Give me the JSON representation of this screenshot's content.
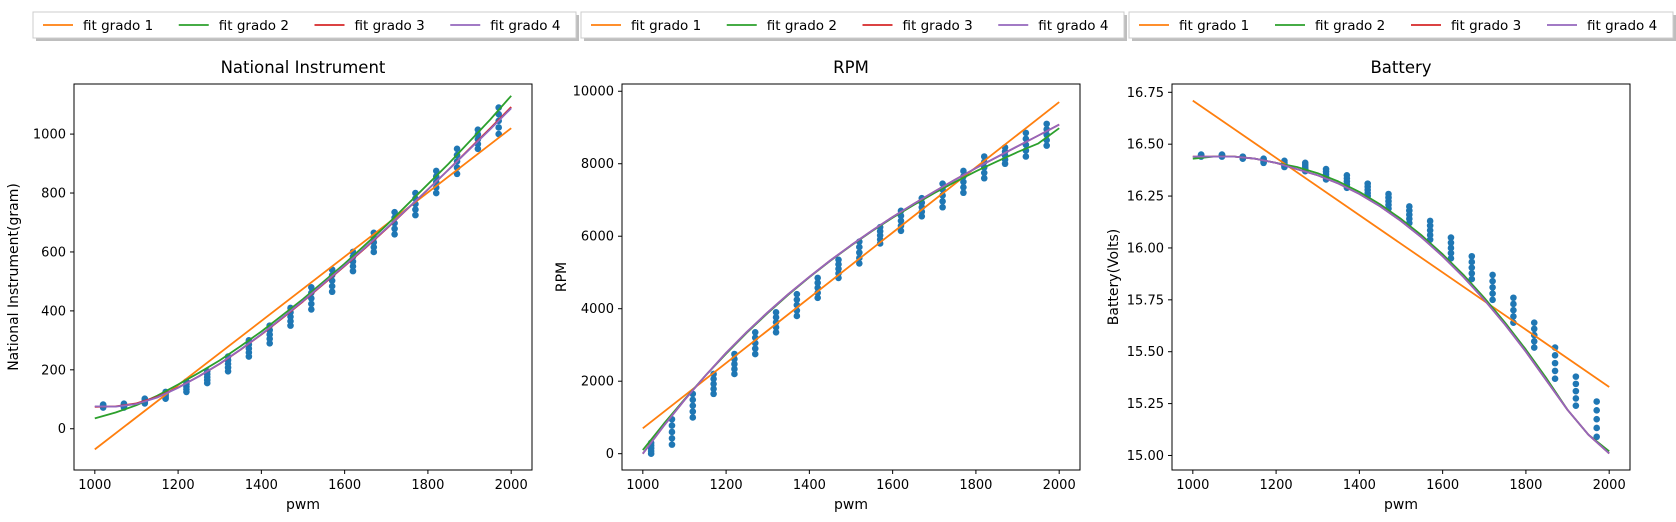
{
  "chart_data": [
    {
      "type": "scatter",
      "title": "National Instrument",
      "xlabel": "pwm",
      "ylabel": "National Instrument(gram)",
      "xlim": [
        950,
        2050
      ],
      "ylim": [
        -140,
        1170
      ],
      "xticks": [
        1000,
        1200,
        1400,
        1600,
        1800,
        2000
      ],
      "yticks": [
        0,
        200,
        400,
        600,
        800,
        1000
      ],
      "grid": false,
      "legend": {
        "placement": "top-center, outside axes, shadowed frame",
        "entries": [
          "fit grado 1",
          "fit grado 2",
          "fit grado 3",
          "fit grado 4"
        ]
      },
      "scatter": [
        {
          "x": 1020,
          "y": [
            72,
            82
          ]
        },
        {
          "x": 1070,
          "y": [
            72,
            85
          ]
        },
        {
          "x": 1120,
          "y": [
            86,
            102
          ]
        },
        {
          "x": 1170,
          "y": [
            102,
            125
          ]
        },
        {
          "x": 1220,
          "y": [
            125,
            160
          ]
        },
        {
          "x": 1270,
          "y": [
            155,
            195
          ]
        },
        {
          "x": 1320,
          "y": [
            195,
            245
          ]
        },
        {
          "x": 1370,
          "y": [
            245,
            300
          ]
        },
        {
          "x": 1420,
          "y": [
            290,
            350
          ]
        },
        {
          "x": 1470,
          "y": [
            350,
            410
          ]
        },
        {
          "x": 1520,
          "y": [
            405,
            480
          ]
        },
        {
          "x": 1570,
          "y": [
            465,
            540
          ]
        },
        {
          "x": 1620,
          "y": [
            535,
            600
          ]
        },
        {
          "x": 1670,
          "y": [
            600,
            665
          ]
        },
        {
          "x": 1720,
          "y": [
            660,
            735
          ]
        },
        {
          "x": 1770,
          "y": [
            725,
            800
          ]
        },
        {
          "x": 1820,
          "y": [
            800,
            875
          ]
        },
        {
          "x": 1870,
          "y": [
            865,
            950
          ]
        },
        {
          "x": 1920,
          "y": [
            950,
            1015
          ]
        },
        {
          "x": 1970,
          "y": [
            1000,
            1090
          ]
        }
      ],
      "series": [
        {
          "name": "fit grado 1",
          "x": [
            1000,
            2000
          ],
          "y": [
            -70,
            1020
          ]
        },
        {
          "name": "fit grado 2",
          "x": [
            1000,
            1050,
            1100,
            1150,
            1200,
            1250,
            1300,
            1350,
            1400,
            1450,
            1500,
            1550,
            1600,
            1650,
            1700,
            1750,
            1800,
            1850,
            1900,
            1950,
            2000
          ],
          "y": [
            35,
            55,
            80,
            112,
            150,
            190,
            232,
            280,
            330,
            385,
            440,
            500,
            560,
            625,
            690,
            760,
            830,
            900,
            975,
            1050,
            1130
          ]
        },
        {
          "name": "fit grado 3",
          "x": [
            1000,
            1050,
            1100,
            1150,
            1200,
            1250,
            1300,
            1350,
            1400,
            1450,
            1500,
            1550,
            1600,
            1650,
            1700,
            1750,
            1800,
            1850,
            1900,
            1950,
            2000
          ],
          "y": [
            74,
            76,
            86,
            108,
            140,
            178,
            220,
            268,
            320,
            375,
            432,
            492,
            552,
            614,
            678,
            745,
            812,
            880,
            950,
            1020,
            1092
          ]
        },
        {
          "name": "fit grado 4",
          "x": [
            1000,
            1050,
            1100,
            1150,
            1200,
            1250,
            1300,
            1350,
            1400,
            1450,
            1500,
            1550,
            1600,
            1650,
            1700,
            1750,
            1800,
            1850,
            1900,
            1950,
            2000
          ],
          "y": [
            76,
            75,
            84,
            106,
            139,
            178,
            221,
            269,
            321,
            377,
            434,
            494,
            554,
            616,
            680,
            746,
            812,
            880,
            948,
            1017,
            1088
          ]
        }
      ]
    },
    {
      "type": "scatter",
      "title": "RPM",
      "xlabel": "pwm",
      "ylabel": "RPM",
      "xlim": [
        950,
        2050
      ],
      "ylim": [
        -450,
        10200
      ],
      "xticks": [
        1000,
        1200,
        1400,
        1600,
        1800,
        2000
      ],
      "yticks": [
        0,
        2000,
        4000,
        6000,
        8000,
        10000
      ],
      "grid": false,
      "legend": {
        "placement": "top-center, outside axes, shadowed frame",
        "entries": [
          "fit grado 1",
          "fit grado 2",
          "fit grado 3",
          "fit grado 4"
        ]
      },
      "scatter": [
        {
          "x": 1020,
          "y": [
            0,
            300
          ]
        },
        {
          "x": 1070,
          "y": [
            250,
            950
          ]
        },
        {
          "x": 1120,
          "y": [
            1000,
            1650
          ]
        },
        {
          "x": 1170,
          "y": [
            1650,
            2200
          ]
        },
        {
          "x": 1220,
          "y": [
            2200,
            2750
          ]
        },
        {
          "x": 1270,
          "y": [
            2750,
            3350
          ]
        },
        {
          "x": 1320,
          "y": [
            3350,
            3900
          ]
        },
        {
          "x": 1370,
          "y": [
            3800,
            4400
          ]
        },
        {
          "x": 1420,
          "y": [
            4300,
            4850
          ]
        },
        {
          "x": 1470,
          "y": [
            4850,
            5350
          ]
        },
        {
          "x": 1520,
          "y": [
            5250,
            5850
          ]
        },
        {
          "x": 1570,
          "y": [
            5800,
            6250
          ]
        },
        {
          "x": 1620,
          "y": [
            6150,
            6700
          ]
        },
        {
          "x": 1670,
          "y": [
            6550,
            7050
          ]
        },
        {
          "x": 1720,
          "y": [
            6800,
            7450
          ]
        },
        {
          "x": 1770,
          "y": [
            7200,
            7800
          ]
        },
        {
          "x": 1820,
          "y": [
            7600,
            8200
          ]
        },
        {
          "x": 1870,
          "y": [
            8000,
            8450
          ]
        },
        {
          "x": 1920,
          "y": [
            8200,
            8850
          ]
        },
        {
          "x": 1970,
          "y": [
            8500,
            9100
          ]
        }
      ],
      "series": [
        {
          "name": "fit grado 1",
          "x": [
            1000,
            2000
          ],
          "y": [
            700,
            9700
          ]
        },
        {
          "name": "fit grado 2",
          "x": [
            1000,
            1050,
            1100,
            1150,
            1200,
            1250,
            1300,
            1350,
            1400,
            1450,
            1500,
            1550,
            1600,
            1650,
            1700,
            1750,
            1800,
            1850,
            1900,
            1950,
            2000
          ],
          "y": [
            100,
            820,
            1500,
            2150,
            2760,
            3340,
            3880,
            4390,
            4870,
            5320,
            5740,
            6140,
            6510,
            6860,
            7190,
            7500,
            7790,
            8060,
            8320,
            8560,
            8980
          ]
        },
        {
          "name": "fit grado 3",
          "x": [
            1000,
            1050,
            1100,
            1150,
            1200,
            1250,
            1300,
            1350,
            1400,
            1450,
            1500,
            1550,
            1600,
            1650,
            1700,
            1750,
            1800,
            1850,
            1900,
            1950,
            2000
          ],
          "y": [
            0,
            760,
            1480,
            2150,
            2780,
            3360,
            3900,
            4410,
            4880,
            5330,
            5750,
            6150,
            6530,
            6890,
            7230,
            7560,
            7880,
            8180,
            8480,
            8780,
            9080
          ]
        },
        {
          "name": "fit grado 4",
          "x": [
            1000,
            1050,
            1100,
            1150,
            1200,
            1250,
            1300,
            1350,
            1400,
            1450,
            1500,
            1550,
            1600,
            1650,
            1700,
            1750,
            1800,
            1850,
            1900,
            1950,
            2000
          ],
          "y": [
            0,
            760,
            1480,
            2150,
            2780,
            3360,
            3900,
            4410,
            4880,
            5330,
            5750,
            6150,
            6530,
            6890,
            7230,
            7560,
            7880,
            8180,
            8480,
            8780,
            9080
          ]
        }
      ]
    },
    {
      "type": "scatter",
      "title": "Battery",
      "xlabel": "pwm",
      "ylabel": "Battery(Volts)",
      "xlim": [
        950,
        2050
      ],
      "ylim": [
        14.93,
        16.79
      ],
      "xticks": [
        1000,
        1200,
        1400,
        1600,
        1800,
        2000
      ],
      "yticks": [
        15.0,
        15.25,
        15.5,
        15.75,
        16.0,
        16.25,
        16.5,
        16.75
      ],
      "grid": false,
      "legend": {
        "placement": "top-center, outside axes, shadowed frame",
        "entries": [
          "fit grado 1",
          "fit grado 2",
          "fit grado 3",
          "fit grado 4"
        ]
      },
      "scatter": [
        {
          "x": 1020,
          "y": [
            16.44,
            16.45
          ]
        },
        {
          "x": 1070,
          "y": [
            16.44,
            16.45
          ]
        },
        {
          "x": 1120,
          "y": [
            16.43,
            16.44
          ]
        },
        {
          "x": 1170,
          "y": [
            16.41,
            16.43
          ]
        },
        {
          "x": 1220,
          "y": [
            16.39,
            16.42
          ]
        },
        {
          "x": 1270,
          "y": [
            16.37,
            16.41
          ]
        },
        {
          "x": 1320,
          "y": [
            16.33,
            16.38
          ]
        },
        {
          "x": 1370,
          "y": [
            16.29,
            16.35
          ]
        },
        {
          "x": 1420,
          "y": [
            16.25,
            16.31
          ]
        },
        {
          "x": 1470,
          "y": [
            16.19,
            16.26
          ]
        },
        {
          "x": 1520,
          "y": [
            16.12,
            16.2
          ]
        },
        {
          "x": 1570,
          "y": [
            16.04,
            16.13
          ]
        },
        {
          "x": 1620,
          "y": [
            15.95,
            16.05
          ]
        },
        {
          "x": 1670,
          "y": [
            15.85,
            15.96
          ]
        },
        {
          "x": 1720,
          "y": [
            15.75,
            15.87
          ]
        },
        {
          "x": 1770,
          "y": [
            15.64,
            15.76
          ]
        },
        {
          "x": 1820,
          "y": [
            15.52,
            15.64
          ]
        },
        {
          "x": 1870,
          "y": [
            15.37,
            15.52
          ]
        },
        {
          "x": 1920,
          "y": [
            15.24,
            15.38
          ]
        },
        {
          "x": 1970,
          "y": [
            15.09,
            15.26
          ]
        }
      ],
      "series": [
        {
          "name": "fit grado 1",
          "x": [
            1000,
            2000
          ],
          "y": [
            16.71,
            15.33
          ]
        },
        {
          "name": "fit grado 2",
          "x": [
            1000,
            1050,
            1100,
            1150,
            1200,
            1250,
            1300,
            1350,
            1400,
            1450,
            1500,
            1550,
            1600,
            1650,
            1700,
            1750,
            1800,
            1850,
            1900,
            1950,
            2000
          ],
          "y": [
            16.43,
            16.44,
            16.44,
            16.43,
            16.41,
            16.39,
            16.36,
            16.32,
            16.27,
            16.21,
            16.14,
            16.06,
            15.97,
            15.87,
            15.76,
            15.64,
            15.51,
            15.37,
            15.22,
            15.1,
            15.02
          ]
        },
        {
          "name": "fit grado 3",
          "x": [
            1000,
            1050,
            1100,
            1150,
            1200,
            1250,
            1300,
            1350,
            1400,
            1450,
            1500,
            1550,
            1600,
            1650,
            1700,
            1750,
            1800,
            1850,
            1900,
            1950,
            2000
          ],
          "y": [
            16.44,
            16.44,
            16.44,
            16.43,
            16.41,
            16.38,
            16.35,
            16.31,
            16.26,
            16.2,
            16.13,
            16.05,
            15.96,
            15.86,
            15.75,
            15.63,
            15.5,
            15.36,
            15.22,
            15.1,
            15.01
          ]
        },
        {
          "name": "fit grado 4",
          "x": [
            1000,
            1050,
            1100,
            1150,
            1200,
            1250,
            1300,
            1350,
            1400,
            1450,
            1500,
            1550,
            1600,
            1650,
            1700,
            1750,
            1800,
            1850,
            1900,
            1950,
            2000
          ],
          "y": [
            16.44,
            16.44,
            16.44,
            16.43,
            16.41,
            16.38,
            16.35,
            16.31,
            16.26,
            16.2,
            16.13,
            16.05,
            15.96,
            15.86,
            15.75,
            15.63,
            15.5,
            15.36,
            15.22,
            15.1,
            15.01
          ]
        }
      ]
    }
  ],
  "colors": {
    "scatter": "#1f77b4",
    "fit grado 1": "#ff7f0e",
    "fit grado 2": "#2ca02c",
    "fit grado 3": "#d62728",
    "fit grado 4": "#9467bd"
  }
}
